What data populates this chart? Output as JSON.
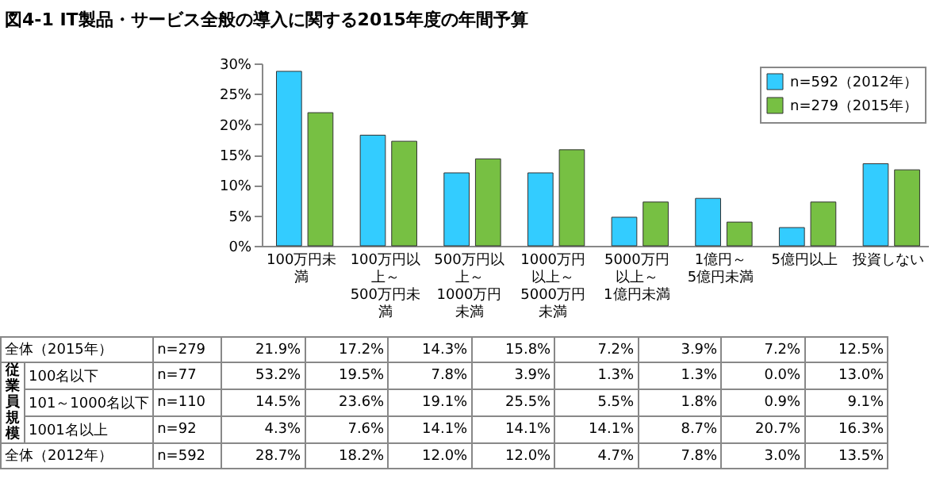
{
  "chart_data": {
    "type": "bar",
    "title": "図4-1 IT製品・サービス全般の導入に関する2015年度の年間予算",
    "categories": [
      "100万円未満",
      "100万円以上～500万円未満",
      "500万円以上～1000万円未満",
      "1000万円以上～5000万円未満",
      "5000万円以上～1億円未満",
      "1億円～5億円未満",
      "5億円以上",
      "投資しない"
    ],
    "series": [
      {
        "name": "n=592（2012年）",
        "color": "#33ccff",
        "values": [
          28.7,
          18.2,
          12.0,
          12.0,
          4.7,
          7.8,
          3.0,
          13.5
        ]
      },
      {
        "name": "n=279（2015年）",
        "color": "#77c043",
        "values": [
          21.9,
          17.2,
          14.3,
          15.8,
          7.2,
          3.9,
          7.2,
          12.5
        ]
      }
    ],
    "ylim": [
      0,
      30
    ],
    "yticks": [
      {
        "value": 0,
        "label": "0%"
      },
      {
        "value": 5,
        "label": "5%"
      },
      {
        "value": 10,
        "label": "10%"
      },
      {
        "value": 15,
        "label": "15%"
      },
      {
        "value": 20,
        "label": "20%"
      },
      {
        "value": 25,
        "label": "25%"
      },
      {
        "value": 30,
        "label": "30%"
      }
    ],
    "legend": "top right",
    "annotations": [
      "従業員規模",
      "全体（2015年）",
      "n=279",
      "21.9%",
      "17.2%",
      "14.3%",
      "15.8%",
      "7.2%",
      "3.9%",
      "7.2%",
      "12.5%",
      "100名以下",
      "n=77",
      "53.2%",
      "19.5%",
      "7.8%",
      "3.9%",
      "1.3%",
      "1.3%",
      "0.0%",
      "13.0%",
      "101～1000名以下",
      "n=110",
      "14.5%",
      "23.6%",
      "19.1%",
      "25.5%",
      "5.5%",
      "1.8%",
      "0.9%",
      "9.1%",
      "1001名以上",
      "n=92",
      "4.3%",
      "7.6%",
      "14.1%",
      "14.1%",
      "14.1%",
      "8.7%",
      "20.7%",
      "16.3%",
      "全体（2012年）",
      "n=592",
      "28.7%",
      "18.2%",
      "12.0%",
      "12.0%",
      "4.7%",
      "7.8%",
      "3.0%",
      "13.5%"
    ]
  }
}
